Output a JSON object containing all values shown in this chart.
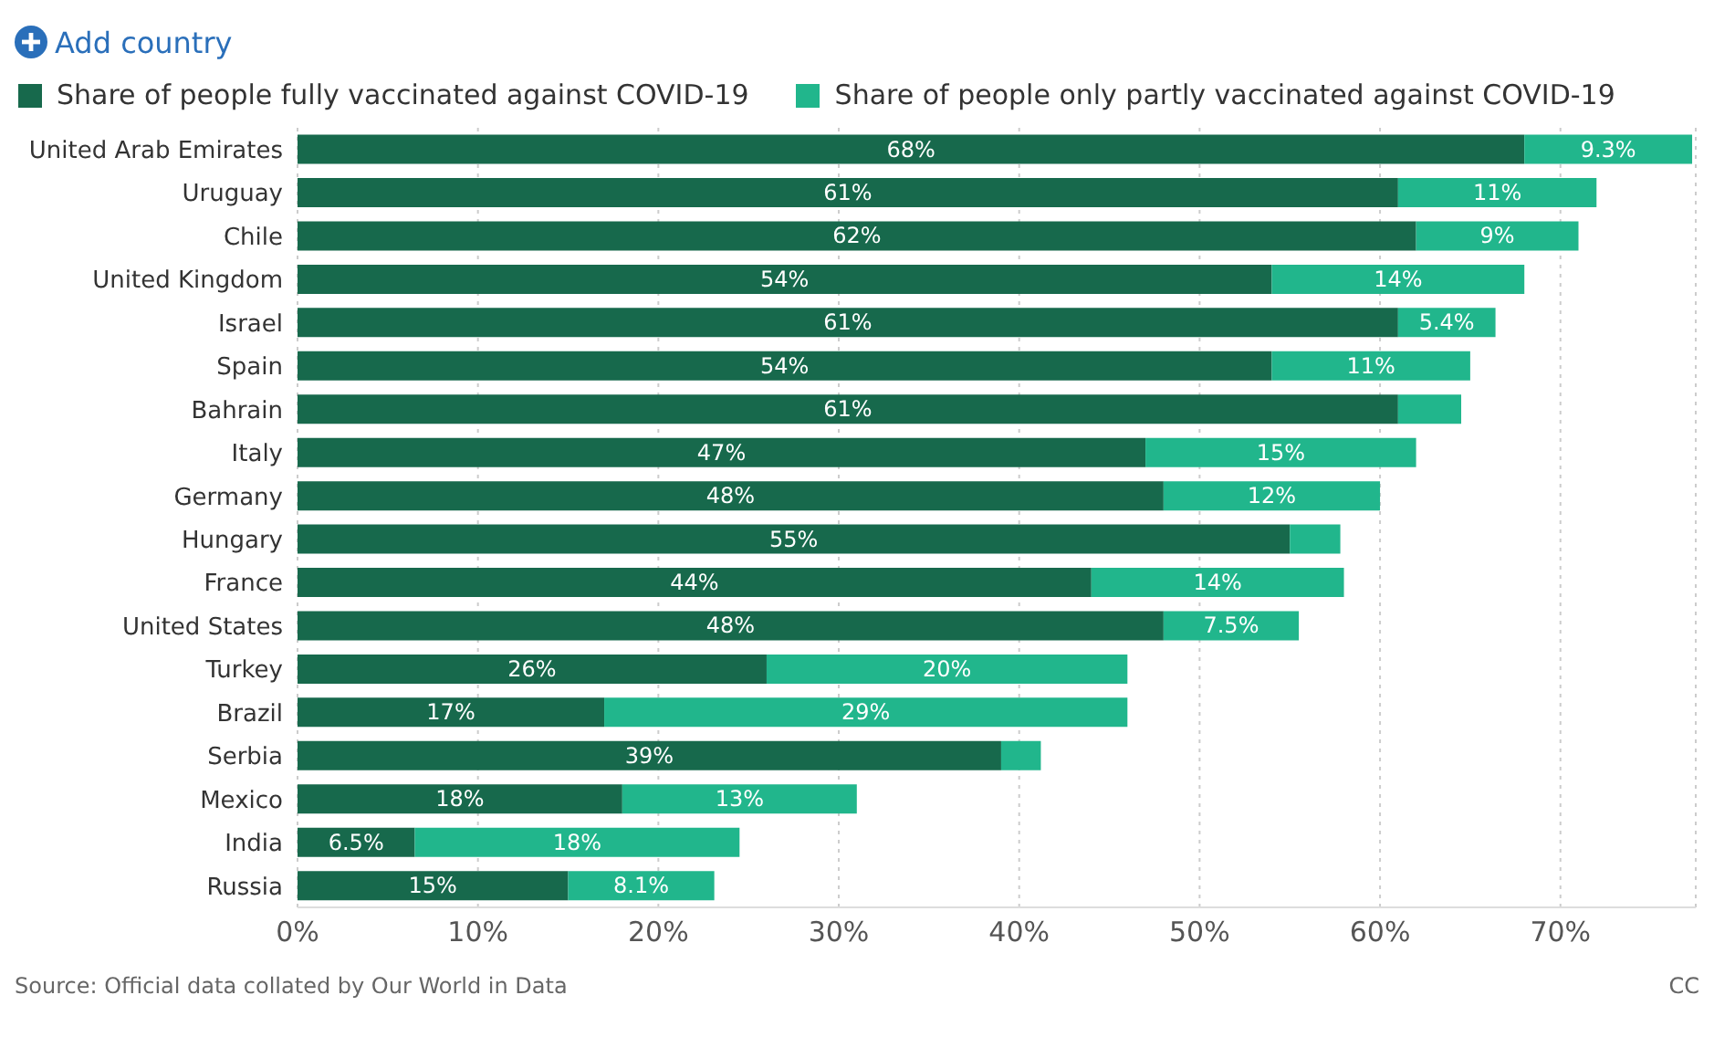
{
  "chart_data": {
    "type": "bar",
    "orientation": "horizontal",
    "stacked": true,
    "categories": [
      "United Arab Emirates",
      "Uruguay",
      "Chile",
      "United Kingdom",
      "Israel",
      "Spain",
      "Bahrain",
      "Italy",
      "Germany",
      "Hungary",
      "France",
      "United States",
      "Turkey",
      "Brazil",
      "Serbia",
      "Mexico",
      "India",
      "Russia"
    ],
    "series": [
      {
        "name": "Share of people fully vaccinated against COVID-19",
        "color": "#17694c",
        "values": [
          68,
          61,
          62,
          54,
          61,
          54,
          61,
          47,
          48,
          55,
          44,
          48,
          26,
          17,
          39,
          18,
          6.5,
          15
        ],
        "value_labels": [
          "68%",
          "61%",
          "62%",
          "54%",
          "61%",
          "54%",
          "61%",
          "47%",
          "48%",
          "55%",
          "44%",
          "48%",
          "26%",
          "17%",
          "39%",
          "18%",
          "6.5%",
          "15%"
        ]
      },
      {
        "name": "Share of people only partly vaccinated against COVID-19",
        "color": "#21b68c",
        "values": [
          9.3,
          11,
          9,
          14,
          5.4,
          11,
          3.5,
          15,
          12,
          2.8,
          14,
          7.5,
          20,
          29,
          2.2,
          13,
          18,
          8.1
        ],
        "value_labels": [
          "9.3%",
          "11%",
          "9%",
          "14%",
          "5.4%",
          "11%",
          null,
          "15%",
          "12%",
          null,
          "14%",
          "7.5%",
          "20%",
          "29%",
          null,
          "13%",
          "18%",
          "8.1%"
        ]
      }
    ],
    "xlim": [
      0,
      77.5
    ],
    "xticks": [
      {
        "value": 0,
        "label": "0%"
      },
      {
        "value": 10,
        "label": "10%"
      },
      {
        "value": 20,
        "label": "20%"
      },
      {
        "value": 30,
        "label": "30%"
      },
      {
        "value": 40,
        "label": "40%"
      },
      {
        "value": 50,
        "label": "50%"
      },
      {
        "value": 60,
        "label": "60%"
      },
      {
        "value": 70,
        "label": "70%"
      }
    ],
    "grid": "x",
    "legend": "top left",
    "annotations": [
      "Add country",
      "Source: Official data collated by Our World in Data",
      "CC"
    ]
  }
}
